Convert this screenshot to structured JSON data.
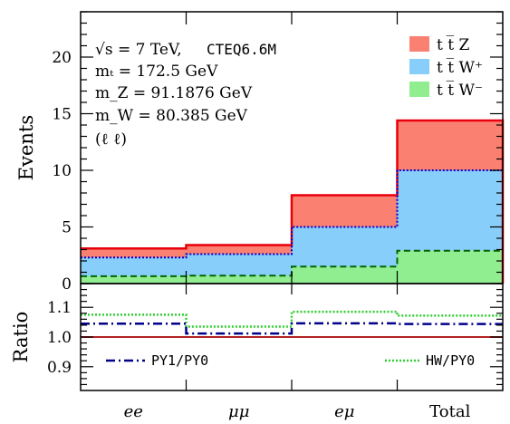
{
  "colors": {
    "ttZ": "#fa8072",
    "ttWplus": "#87cefa",
    "ttWminus": "#90ee90",
    "total_line": "#e8000b",
    "ttWplus_line": "#0000cd",
    "ttWminus_line": "#006400",
    "ratio_ref": "#b22222",
    "py1": "#00008b",
    "hw": "#32cd32"
  },
  "chart_data": [
    {
      "type": "area",
      "ylabel": "Events",
      "ylim": [
        0,
        24
      ],
      "yticks": [
        "0",
        "5",
        "10",
        "15",
        "20"
      ],
      "categories": [
        "ee",
        "μμ",
        "eμ",
        "Total"
      ],
      "stacking": "cumulative (step histogram)",
      "annotations": {
        "sqrt_s": "√s = 7 TeV,",
        "pdf": "CTEQ6.6M",
        "mt": "mₜ = 172.5 GeV",
        "mZ": "m_Z = 91.1876 GeV",
        "mW": "m_W = 80.385 GeV",
        "channel": "(ℓ ℓ)"
      },
      "legend_position": "top-right",
      "series": [
        {
          "name": "t t̅ Z",
          "cumulative_values": [
            3.1,
            3.4,
            7.8,
            14.4
          ]
        },
        {
          "name": "t t̅ W⁺",
          "cumulative_values": [
            2.3,
            2.6,
            5.0,
            10.0
          ]
        },
        {
          "name": "t t̅ W⁻",
          "cumulative_values": [
            0.65,
            0.7,
            1.5,
            2.9
          ]
        }
      ]
    },
    {
      "type": "line",
      "ylabel": "Ratio",
      "ylim": [
        0.82,
        1.18
      ],
      "yticks": [
        "0.9",
        "1.0",
        "1.1"
      ],
      "reference": 1.0,
      "series": [
        {
          "name": "PY1/PY0",
          "values": [
            1.045,
            1.012,
            1.046,
            1.044
          ]
        },
        {
          "name": "HW/PY0",
          "values": [
            1.075,
            1.035,
            1.085,
            1.072
          ]
        }
      ]
    }
  ]
}
